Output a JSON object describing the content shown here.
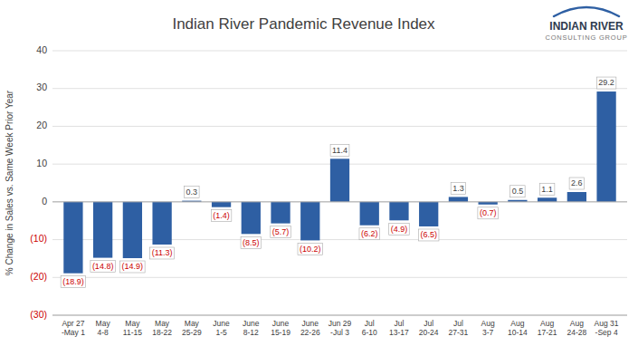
{
  "chart_data": {
    "type": "bar",
    "title": "Indian River Pandemic Revenue Index",
    "y_label": "% Change in Sales vs. Same Week Prior Year",
    "categories": [
      "Apr 27\n-May 1",
      "May\n4-8",
      "May\n11-15",
      "May\n18-22",
      "May\n25-29",
      "June\n1-5",
      "June\n8-12",
      "June\n15-19",
      "June\n22-26",
      "Jun 29\n-Jul 3",
      "Jul\n6-10",
      "Jul\n13-17",
      "Jul\n20-24",
      "Jul\n27-31",
      "Aug\n3-7",
      "Aug\n10-14",
      "Aug\n17-21",
      "Aug\n24-28",
      "Aug 31\n-Sep 4"
    ],
    "values": [
      -18.9,
      -14.8,
      -14.9,
      -11.3,
      0.3,
      -1.4,
      -8.5,
      -5.7,
      -10.2,
      11.4,
      -6.2,
      -4.9,
      -6.5,
      1.3,
      -0.7,
      0.5,
      1.1,
      2.6,
      29.2
    ],
    "value_labels": [
      "(18.9)",
      "(14.8)",
      "(14.9)",
      "(11.3)",
      "0.3",
      "(1.4)",
      "(8.5)",
      "(5.7)",
      "(10.2)",
      "11.4",
      "(6.2)",
      "(4.9)",
      "(6.5)",
      "1.3",
      "(0.7)",
      "0.5",
      "1.1",
      "2.6",
      "29.2"
    ],
    "data_labels": true,
    "color": "#2E5FA3",
    "ylim": [
      -30,
      40
    ],
    "yticks": [
      {
        "value": -30,
        "label": "(30)"
      },
      {
        "value": -20,
        "label": "(20)"
      },
      {
        "value": -10,
        "label": "(10)"
      },
      0,
      10,
      20,
      30,
      40
    ],
    "grid": true,
    "annotations": [
      "INDIAN RIVER",
      "CONSULTING GROUP"
    ]
  }
}
